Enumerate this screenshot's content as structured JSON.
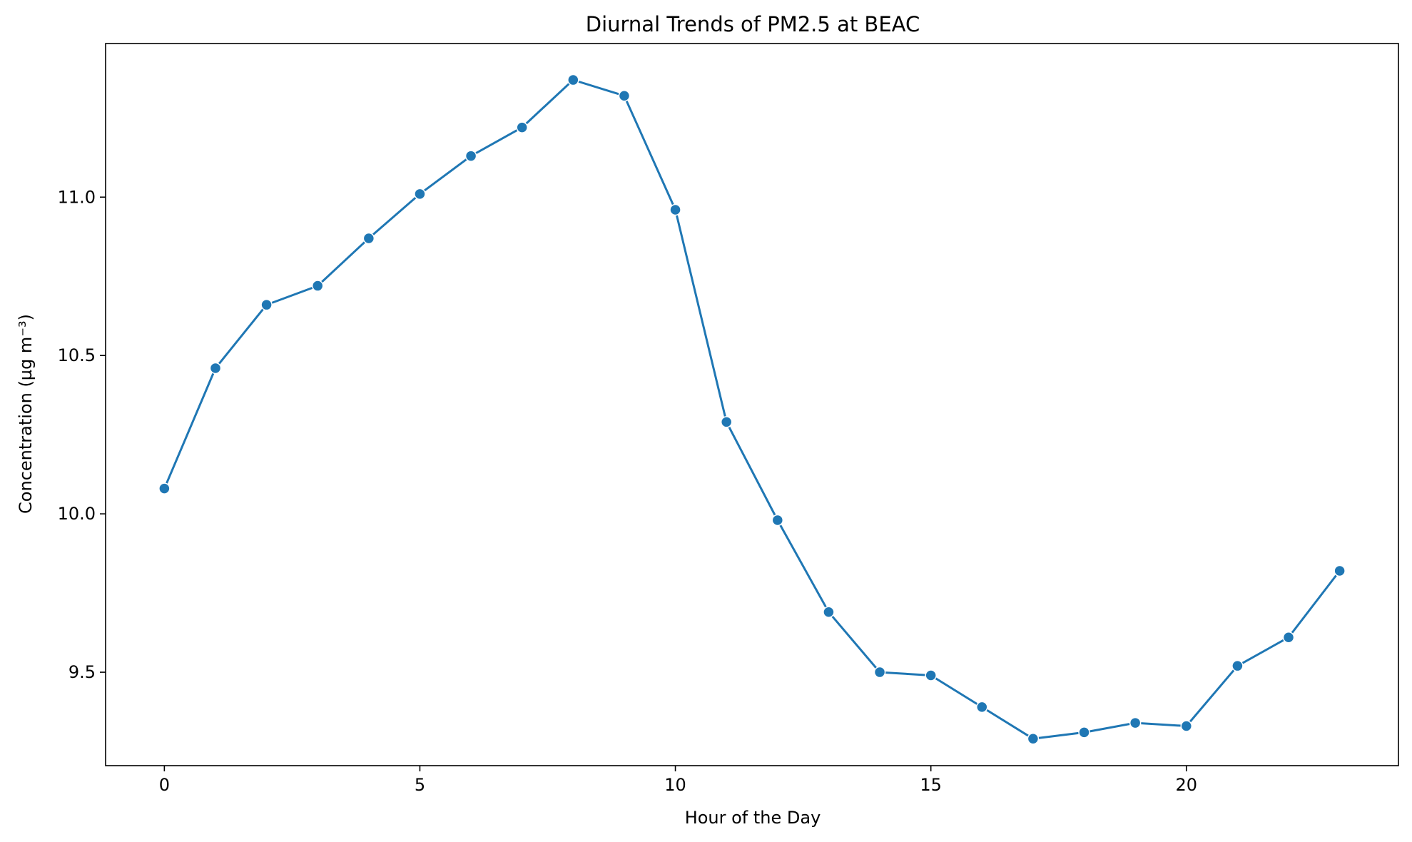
{
  "chart_data": {
    "type": "line",
    "title": "Diurnal Trends of PM2.5 at BEAC",
    "xlabel": "Hour of the Day",
    "ylabel": "Concentration (µg m⁻³)",
    "xlim": [
      -1.15,
      24.15
    ],
    "ylim": [
      9.205,
      11.485
    ],
    "xticks": [
      0,
      5,
      10,
      15,
      20
    ],
    "xtick_labels": [
      "0",
      "5",
      "10",
      "15",
      "20"
    ],
    "yticks": [
      9.5,
      10.0,
      10.5,
      11.0
    ],
    "ytick_labels": [
      "9.5",
      "10.0",
      "10.5",
      "11.0"
    ],
    "grid": false,
    "legend": "none",
    "series": [
      {
        "color": "#1f77b4",
        "marker": "circle",
        "x": [
          0,
          1,
          2,
          3,
          4,
          5,
          6,
          7,
          8,
          9,
          10,
          11,
          12,
          13,
          14,
          15,
          16,
          17,
          18,
          19,
          20,
          21,
          22,
          23
        ],
        "values": [
          10.08,
          10.46,
          10.66,
          10.72,
          10.87,
          11.01,
          11.13,
          11.22,
          11.37,
          11.32,
          10.96,
          10.29,
          9.98,
          9.69,
          9.5,
          9.49,
          9.39,
          9.29,
          9.31,
          9.34,
          9.33,
          9.52,
          9.61,
          9.82
        ]
      }
    ]
  }
}
